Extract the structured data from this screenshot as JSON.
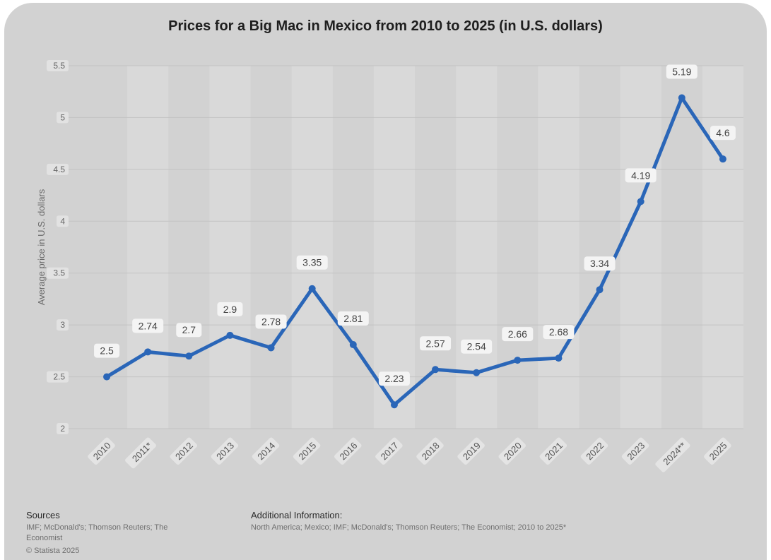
{
  "chart_data": {
    "type": "line",
    "title": "Prices for a Big Mac in Mexico from 2010 to 2025 (in U.S. dollars)",
    "xlabel": "",
    "ylabel": "Average price in U.S. dollars",
    "categories": [
      "2010",
      "2011*",
      "2012",
      "2013",
      "2014",
      "2015",
      "2016",
      "2017",
      "2018",
      "2019",
      "2020",
      "2021",
      "2022",
      "2023",
      "2024**",
      "2025"
    ],
    "values": [
      2.5,
      2.74,
      2.7,
      2.9,
      2.78,
      3.35,
      2.81,
      2.23,
      2.57,
      2.54,
      2.66,
      2.68,
      3.34,
      4.19,
      5.19,
      4.6
    ],
    "value_labels": [
      "2.5",
      "2.74",
      "2.7",
      "2.9",
      "2.78",
      "3.35",
      "2.81",
      "2.23",
      "2.57",
      "2.54",
      "2.66",
      "2.68",
      "3.34",
      "4.19",
      "5.19",
      "4.6"
    ],
    "ylim": [
      2,
      5.5
    ],
    "yticks": [
      2,
      2.5,
      3,
      3.5,
      4,
      4.5,
      5,
      5.5
    ],
    "ytick_labels": [
      "2",
      "2.5",
      "3",
      "3.5",
      "4",
      "4.5",
      "5",
      "5.5"
    ],
    "grid": true,
    "line_color": "#2a66b8"
  },
  "footer": {
    "sources_heading": "Sources",
    "sources_text": [
      "IMF; McDonald's; Thomson Reuters; The",
      "Economist"
    ],
    "copyright": "© Statista 2025",
    "additional_heading": "Additional Information:",
    "additional_text": "North America; Mexico; IMF; McDonald's; Thomson Reuters; The Economist; 2010 to 2025*"
  }
}
